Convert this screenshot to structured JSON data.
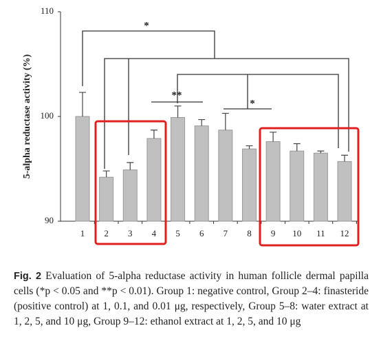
{
  "chart_data": {
    "type": "bar",
    "y_label": "5-alpha reductase activity (%)",
    "categories": [
      "1",
      "2",
      "3",
      "4",
      "5",
      "6",
      "7",
      "8",
      "9",
      "10",
      "11",
      "12"
    ],
    "values": [
      100.0,
      94.2,
      94.9,
      97.9,
      99.9,
      99.1,
      98.7,
      96.9,
      97.6,
      96.7,
      96.5,
      95.7
    ],
    "errors": [
      2.3,
      0.6,
      0.7,
      0.8,
      1.1,
      0.6,
      1.6,
      0.3,
      0.9,
      0.7,
      0.2,
      0.6
    ],
    "color": "#c0c0c0",
    "ylim": [
      90,
      110
    ],
    "yticks": [
      90,
      100,
      110
    ],
    "annotations": [
      "*",
      "**",
      "*"
    ]
  },
  "caption": {
    "label": "Fig. 2",
    "text": "Evaluation of 5-alpha reductase activity in human follicle dermal papilla cells (*p < 0.05 and **p < 0.01). Group 1: negative control, Group 2–4: finasteride (positive control) at 1, 0.1, and 0.01 μg, respectively, Group 5–8: water extract at 1, 2, 5, and 10 μg, Group 9–12: ethanol extract at 1, 2, 5, and 10 μg"
  }
}
